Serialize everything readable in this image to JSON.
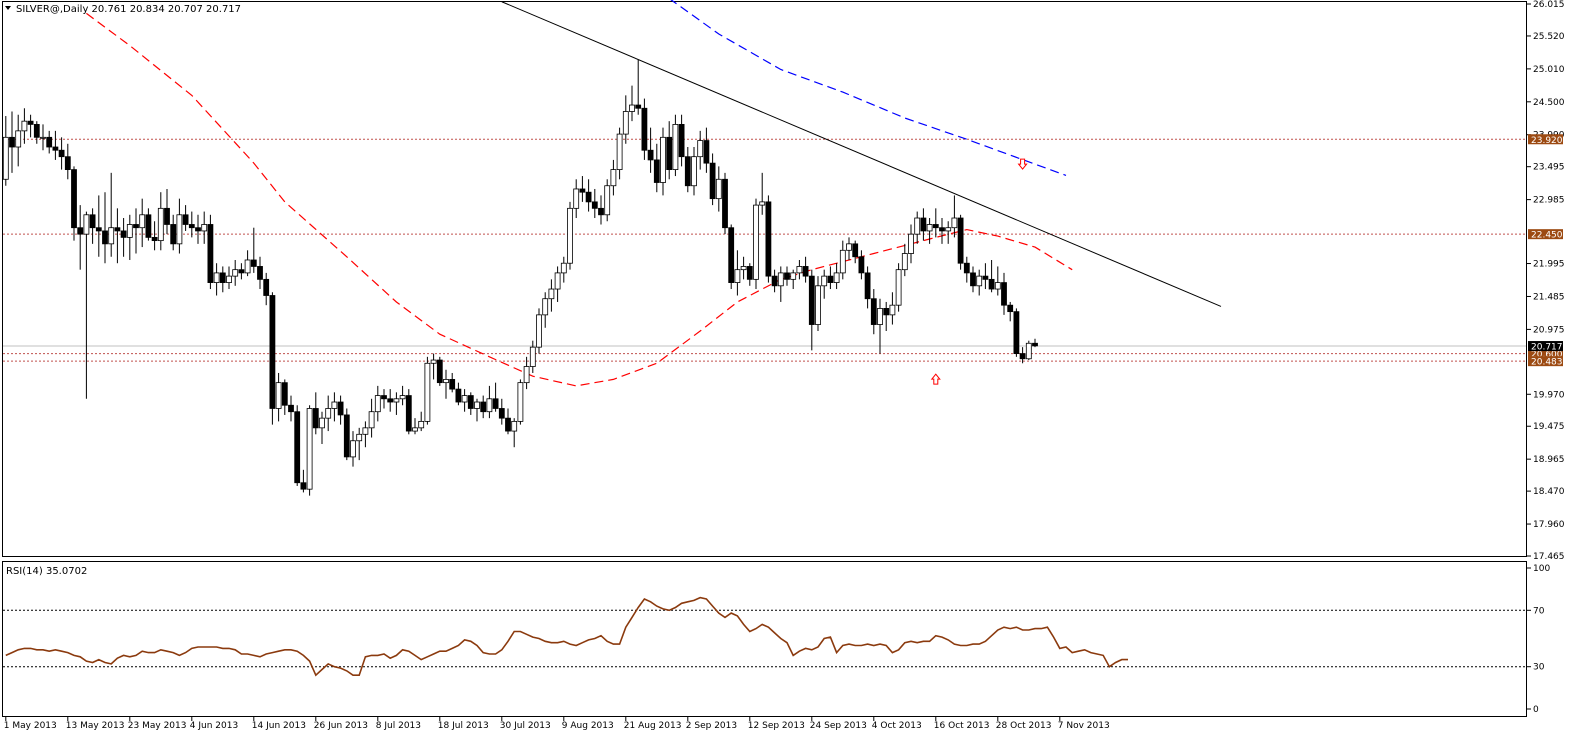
{
  "chart_data": {
    "type": "candlestick",
    "header": "SILVER@,Daily  20.761 20.834 20.707 20.717",
    "symbol": "SILVER@,Daily",
    "last_ohlc": [
      20.761,
      20.834,
      20.707,
      20.717
    ],
    "colors": {
      "up_fill": "#ffffff",
      "down_fill": "#000000",
      "wick": "#000000",
      "ma_red": "#ff0000",
      "ma_blue": "#0000ff",
      "trend": "#000000",
      "hlines": "#c0504d",
      "rsi": "#8b3a0e",
      "tag_bg": "#9c4a12",
      "tag_dark": "#000000"
    },
    "price_axis": {
      "min": 17.465,
      "max": 26.015,
      "ticks": [
        "26.015",
        "25.520",
        "25.010",
        "24.500",
        "23.990",
        "23.495",
        "22.985",
        "21.995",
        "21.485",
        "20.975",
        "19.970",
        "19.475",
        "18.965",
        "18.470",
        "17.960",
        "17.465"
      ]
    },
    "date_labels": [
      {
        "i": 0,
        "text": "1 May 2013"
      },
      {
        "i": 10,
        "text": "13 May 2013"
      },
      {
        "i": 20,
        "text": "23 May 2013"
      },
      {
        "i": 30,
        "text": "4 Jun 2013"
      },
      {
        "i": 40,
        "text": "14 Jun 2013"
      },
      {
        "i": 50,
        "text": "26 Jun 2013"
      },
      {
        "i": 60,
        "text": "8 Jul 2013"
      },
      {
        "i": 70,
        "text": "18 Jul 2013"
      },
      {
        "i": 80,
        "text": "30 Jul 2013"
      },
      {
        "i": 90,
        "text": "9 Aug 2013"
      },
      {
        "i": 100,
        "text": "21 Aug 2013"
      },
      {
        "i": 110,
        "text": "2 Sep 2013"
      },
      {
        "i": 120,
        "text": "12 Sep 2013"
      },
      {
        "i": 130,
        "text": "24 Sep 2013"
      },
      {
        "i": 140,
        "text": "4 Oct 2013"
      },
      {
        "i": 150,
        "text": "16 Oct 2013"
      },
      {
        "i": 160,
        "text": "28 Oct 2013"
      },
      {
        "i": 170,
        "text": "7 Nov 2013"
      }
    ],
    "horizontal_levels": [
      {
        "value": 23.92,
        "label": "23.920",
        "color": "#9c4a12"
      },
      {
        "value": 22.45,
        "label": "22.450",
        "color": "#9c4a12"
      },
      {
        "value": 20.6,
        "label": "20.600",
        "color": "#9c4a12"
      },
      {
        "value": 20.483,
        "label": "20.483",
        "color": "#9c4a12"
      }
    ],
    "current_price": {
      "value": 20.717,
      "label": "20.717"
    },
    "trendline": {
      "from": {
        "i": 80,
        "v": 26.05
      },
      "to": {
        "i": 196,
        "v": 21.33
      }
    },
    "ma_blue": [
      [
        107,
        26.1
      ],
      [
        115,
        25.55
      ],
      [
        125,
        25.0
      ],
      [
        135,
        24.65
      ],
      [
        145,
        24.25
      ],
      [
        155,
        23.92
      ],
      [
        171,
        23.36
      ]
    ],
    "ma_red": [
      [
        13,
        25.87
      ],
      [
        20,
        25.37
      ],
      [
        30,
        24.6
      ],
      [
        40,
        23.55
      ],
      [
        45,
        22.95
      ],
      [
        55,
        22.1
      ],
      [
        63,
        21.4
      ],
      [
        70,
        20.9
      ],
      [
        78,
        20.55
      ],
      [
        85,
        20.25
      ],
      [
        92,
        20.1
      ],
      [
        98,
        20.2
      ],
      [
        105,
        20.45
      ],
      [
        112,
        20.95
      ],
      [
        118,
        21.4
      ],
      [
        125,
        21.75
      ],
      [
        130,
        21.9
      ],
      [
        140,
        22.15
      ],
      [
        150,
        22.4
      ],
      [
        155,
        22.52
      ],
      [
        160,
        22.42
      ],
      [
        166,
        22.25
      ],
      [
        172,
        21.9
      ]
    ],
    "candles": [
      [
        23.3,
        24.28,
        23.2,
        23.95
      ],
      [
        23.95,
        24.35,
        23.4,
        23.8
      ],
      [
        23.8,
        24.3,
        23.5,
        24.05
      ],
      [
        24.05,
        24.4,
        23.85,
        24.2
      ],
      [
        24.2,
        24.3,
        23.95,
        24.15
      ],
      [
        24.15,
        24.2,
        23.85,
        23.95
      ],
      [
        23.95,
        24.15,
        23.75,
        23.95
      ],
      [
        23.95,
        24.05,
        23.7,
        23.8
      ],
      [
        23.8,
        24.05,
        23.6,
        23.75
      ],
      [
        23.75,
        23.95,
        23.45,
        23.65
      ],
      [
        23.65,
        23.85,
        23.3,
        23.45
      ],
      [
        23.45,
        23.5,
        22.35,
        22.55
      ],
      [
        22.55,
        22.9,
        21.9,
        22.45
      ],
      [
        22.45,
        22.8,
        19.9,
        22.75
      ],
      [
        22.75,
        22.85,
        22.3,
        22.55
      ],
      [
        22.55,
        23.05,
        22.1,
        22.5
      ],
      [
        22.5,
        23.1,
        22.0,
        22.3
      ],
      [
        22.3,
        23.4,
        22.1,
        22.55
      ],
      [
        22.55,
        22.85,
        22.0,
        22.5
      ],
      [
        22.5,
        22.7,
        22.1,
        22.4
      ],
      [
        22.4,
        22.75,
        22.05,
        22.6
      ],
      [
        22.6,
        22.85,
        22.15,
        22.55
      ],
      [
        22.55,
        23.0,
        22.25,
        22.75
      ],
      [
        22.75,
        22.85,
        22.35,
        22.4
      ],
      [
        22.4,
        22.65,
        22.2,
        22.35
      ],
      [
        22.35,
        23.1,
        22.2,
        22.85
      ],
      [
        22.85,
        23.15,
        22.45,
        22.6
      ],
      [
        22.6,
        22.75,
        22.2,
        22.3
      ],
      [
        22.3,
        23.0,
        22.15,
        22.75
      ],
      [
        22.75,
        22.9,
        22.5,
        22.6
      ],
      [
        22.6,
        22.8,
        22.4,
        22.55
      ],
      [
        22.55,
        22.75,
        22.3,
        22.5
      ],
      [
        22.5,
        22.8,
        22.3,
        22.6
      ],
      [
        22.6,
        22.75,
        21.6,
        21.7
      ],
      [
        21.7,
        22.0,
        21.5,
        21.85
      ],
      [
        21.85,
        21.95,
        21.55,
        21.7
      ],
      [
        21.7,
        21.95,
        21.6,
        21.8
      ],
      [
        21.8,
        22.05,
        21.65,
        21.9
      ],
      [
        21.9,
        22.0,
        21.75,
        21.85
      ],
      [
        21.85,
        22.2,
        21.8,
        22.05
      ],
      [
        22.05,
        22.55,
        21.85,
        21.95
      ],
      [
        21.95,
        22.1,
        21.6,
        21.75
      ],
      [
        21.75,
        21.85,
        21.35,
        21.5
      ],
      [
        21.5,
        21.55,
        19.5,
        19.75
      ],
      [
        19.75,
        20.3,
        19.55,
        20.15
      ],
      [
        20.15,
        20.2,
        19.65,
        19.8
      ],
      [
        19.8,
        19.95,
        19.55,
        19.7
      ],
      [
        19.7,
        19.8,
        18.55,
        18.6
      ],
      [
        18.6,
        18.8,
        18.45,
        18.5
      ],
      [
        18.5,
        19.8,
        18.4,
        19.75
      ],
      [
        19.75,
        20.0,
        19.35,
        19.45
      ],
      [
        19.45,
        19.7,
        19.2,
        19.6
      ],
      [
        19.6,
        19.95,
        19.4,
        19.75
      ],
      [
        19.75,
        20.0,
        19.55,
        19.85
      ],
      [
        19.85,
        19.95,
        19.5,
        19.65
      ],
      [
        19.65,
        19.75,
        18.95,
        19.0
      ],
      [
        19.0,
        19.4,
        18.85,
        19.25
      ],
      [
        19.25,
        19.45,
        18.95,
        19.35
      ],
      [
        19.35,
        19.55,
        19.15,
        19.45
      ],
      [
        19.45,
        19.9,
        19.3,
        19.7
      ],
      [
        19.7,
        20.1,
        19.55,
        19.95
      ],
      [
        19.95,
        20.05,
        19.75,
        19.9
      ],
      [
        19.9,
        20.05,
        19.7,
        19.85
      ],
      [
        19.85,
        20.0,
        19.65,
        19.9
      ],
      [
        19.9,
        20.1,
        19.8,
        19.95
      ],
      [
        19.95,
        20.05,
        19.35,
        19.4
      ],
      [
        19.4,
        19.6,
        19.35,
        19.45
      ],
      [
        19.45,
        19.7,
        19.4,
        19.55
      ],
      [
        19.55,
        20.55,
        19.5,
        20.45
      ],
      [
        20.45,
        20.6,
        20.2,
        20.5
      ],
      [
        20.5,
        20.55,
        20.1,
        20.15
      ],
      [
        20.15,
        20.35,
        19.9,
        20.2
      ],
      [
        20.2,
        20.3,
        20.0,
        20.05
      ],
      [
        20.05,
        20.15,
        19.8,
        19.85
      ],
      [
        19.85,
        20.05,
        19.7,
        19.95
      ],
      [
        19.95,
        20.0,
        19.65,
        19.75
      ],
      [
        19.75,
        19.9,
        19.55,
        19.85
      ],
      [
        19.85,
        19.95,
        19.6,
        19.7
      ],
      [
        19.7,
        20.1,
        19.6,
        19.9
      ],
      [
        19.9,
        20.15,
        19.7,
        19.75
      ],
      [
        19.75,
        19.9,
        19.5,
        19.6
      ],
      [
        19.6,
        19.75,
        19.35,
        19.4
      ],
      [
        19.4,
        19.6,
        19.15,
        19.55
      ],
      [
        19.55,
        20.2,
        19.5,
        20.15
      ],
      [
        20.15,
        20.55,
        20.05,
        20.4
      ],
      [
        20.4,
        20.8,
        20.3,
        20.7
      ],
      [
        20.7,
        21.3,
        20.6,
        21.2
      ],
      [
        21.2,
        21.55,
        21.0,
        21.45
      ],
      [
        21.45,
        21.75,
        21.25,
        21.6
      ],
      [
        21.6,
        21.95,
        21.4,
        21.85
      ],
      [
        21.85,
        22.1,
        21.7,
        22.0
      ],
      [
        22.0,
        22.95,
        21.9,
        22.85
      ],
      [
        22.85,
        23.3,
        22.7,
        23.15
      ],
      [
        23.15,
        23.35,
        22.95,
        23.1
      ],
      [
        23.1,
        23.3,
        22.8,
        22.95
      ],
      [
        22.95,
        23.15,
        22.7,
        22.85
      ],
      [
        22.85,
        23.05,
        22.6,
        22.75
      ],
      [
        22.75,
        23.3,
        22.65,
        23.2
      ],
      [
        23.2,
        23.6,
        23.05,
        23.45
      ],
      [
        23.45,
        24.1,
        23.3,
        24.0
      ],
      [
        24.0,
        24.6,
        23.85,
        24.35
      ],
      [
        24.35,
        24.75,
        24.2,
        24.45
      ],
      [
        24.45,
        25.15,
        24.3,
        24.4
      ],
      [
        24.4,
        24.55,
        23.6,
        23.75
      ],
      [
        23.75,
        24.1,
        23.4,
        23.6
      ],
      [
        23.6,
        23.85,
        23.1,
        23.25
      ],
      [
        23.25,
        24.1,
        23.05,
        23.95
      ],
      [
        23.95,
        24.2,
        23.3,
        23.45
      ],
      [
        23.45,
        24.3,
        23.35,
        24.15
      ],
      [
        24.15,
        24.3,
        23.5,
        23.65
      ],
      [
        23.65,
        23.8,
        23.1,
        23.2
      ],
      [
        23.2,
        23.8,
        23.05,
        23.65
      ],
      [
        23.65,
        24.05,
        23.45,
        23.9
      ],
      [
        23.9,
        24.1,
        23.4,
        23.55
      ],
      [
        23.55,
        23.7,
        22.9,
        23.0
      ],
      [
        23.0,
        23.5,
        22.8,
        23.3
      ],
      [
        23.3,
        23.4,
        22.45,
        22.55
      ],
      [
        22.55,
        22.6,
        21.6,
        21.7
      ],
      [
        21.7,
        22.2,
        21.5,
        21.9
      ],
      [
        21.9,
        22.1,
        21.75,
        21.95
      ],
      [
        21.95,
        22.0,
        21.65,
        21.75
      ],
      [
        21.75,
        23.0,
        21.6,
        22.9
      ],
      [
        22.9,
        23.4,
        22.75,
        22.95
      ],
      [
        22.95,
        23.05,
        21.7,
        21.8
      ],
      [
        21.8,
        21.9,
        21.55,
        21.65
      ],
      [
        21.65,
        21.95,
        21.4,
        21.85
      ],
      [
        21.85,
        21.95,
        21.65,
        21.75
      ],
      [
        21.75,
        21.9,
        21.6,
        21.85
      ],
      [
        21.85,
        22.05,
        21.75,
        21.95
      ],
      [
        21.95,
        22.1,
        21.7,
        21.8
      ],
      [
        21.8,
        21.9,
        20.65,
        21.05
      ],
      [
        21.05,
        21.8,
        20.95,
        21.65
      ],
      [
        21.65,
        21.9,
        21.45,
        21.8
      ],
      [
        21.8,
        21.95,
        21.6,
        21.7
      ],
      [
        21.7,
        22.0,
        21.6,
        21.85
      ],
      [
        21.85,
        22.35,
        21.75,
        22.2
      ],
      [
        22.2,
        22.4,
        22.05,
        22.3
      ],
      [
        22.3,
        22.35,
        22.0,
        22.1
      ],
      [
        22.1,
        22.2,
        21.75,
        21.85
      ],
      [
        21.85,
        21.95,
        21.3,
        21.45
      ],
      [
        21.45,
        21.6,
        20.9,
        21.05
      ],
      [
        21.05,
        21.45,
        20.6,
        21.3
      ],
      [
        21.3,
        21.4,
        20.95,
        21.2
      ],
      [
        21.2,
        21.55,
        21.05,
        21.35
      ],
      [
        21.35,
        22.0,
        21.25,
        21.9
      ],
      [
        21.9,
        22.3,
        21.8,
        22.15
      ],
      [
        22.15,
        22.6,
        22.0,
        22.45
      ],
      [
        22.45,
        22.8,
        22.3,
        22.7
      ],
      [
        22.7,
        22.85,
        22.35,
        22.5
      ],
      [
        22.5,
        22.7,
        22.3,
        22.6
      ],
      [
        22.6,
        22.85,
        22.4,
        22.55
      ],
      [
        22.55,
        22.7,
        22.3,
        22.5
      ],
      [
        22.5,
        22.65,
        22.3,
        22.55
      ],
      [
        22.55,
        23.05,
        22.4,
        22.7
      ],
      [
        22.7,
        22.75,
        21.9,
        22.0
      ],
      [
        22.0,
        22.1,
        21.7,
        21.85
      ],
      [
        21.85,
        21.95,
        21.55,
        21.65
      ],
      [
        21.65,
        21.9,
        21.5,
        21.8
      ],
      [
        21.8,
        22.0,
        21.6,
        21.75
      ],
      [
        21.75,
        22.05,
        21.55,
        21.6
      ],
      [
        21.6,
        21.95,
        21.5,
        21.7
      ],
      [
        21.7,
        21.85,
        21.2,
        21.35
      ],
      [
        21.35,
        21.4,
        21.1,
        21.25
      ],
      [
        21.25,
        21.3,
        20.55,
        20.6
      ],
      [
        20.6,
        20.7,
        20.45,
        20.52
      ],
      [
        20.52,
        20.8,
        20.5,
        20.76
      ],
      [
        20.76,
        20.83,
        20.7,
        20.72
      ]
    ],
    "rsi_panel": {
      "label": "RSI(14) 35.0702",
      "min": 0,
      "max": 100,
      "ticks": [
        "100",
        "70",
        "30",
        "0"
      ],
      "levels": [
        70,
        30
      ],
      "values": [
        38,
        40,
        42,
        43,
        43,
        42,
        42,
        41,
        42,
        41,
        40,
        38,
        37,
        34,
        33,
        35,
        33,
        32,
        36,
        38,
        37,
        38,
        41,
        40,
        40,
        42,
        41,
        40,
        38,
        40,
        43,
        44,
        44,
        44,
        44,
        43,
        43,
        42,
        39,
        39,
        38,
        37,
        39,
        40,
        41,
        42,
        42,
        41,
        38,
        34,
        24,
        28,
        32,
        30,
        29,
        27,
        24,
        24,
        37,
        38,
        38,
        39,
        36,
        38,
        42,
        41,
        38,
        35,
        37,
        39,
        41,
        41,
        43,
        45,
        49,
        48,
        45,
        40,
        39,
        39,
        42,
        48,
        55,
        55,
        53,
        51,
        50,
        48,
        47,
        47,
        48,
        46,
        45,
        47,
        49,
        50,
        52,
        48,
        46,
        46,
        58,
        65,
        72,
        78,
        76,
        73,
        71,
        70,
        72,
        75,
        76,
        77,
        79,
        78,
        73,
        68,
        65,
        68,
        66,
        60,
        55,
        57,
        60,
        58,
        54,
        50,
        47,
        38,
        41,
        43,
        42,
        44,
        50,
        51,
        40,
        45,
        46,
        45,
        45,
        46,
        45,
        46,
        45,
        40,
        42,
        47,
        48,
        47,
        48,
        48,
        52,
        51,
        49,
        46,
        45,
        45,
        46,
        46,
        48,
        52,
        56,
        58,
        57,
        58,
        56,
        56,
        57,
        57,
        58,
        51,
        43,
        44,
        40,
        41,
        42,
        40,
        39,
        38,
        30,
        33,
        35,
        35
      ]
    }
  }
}
